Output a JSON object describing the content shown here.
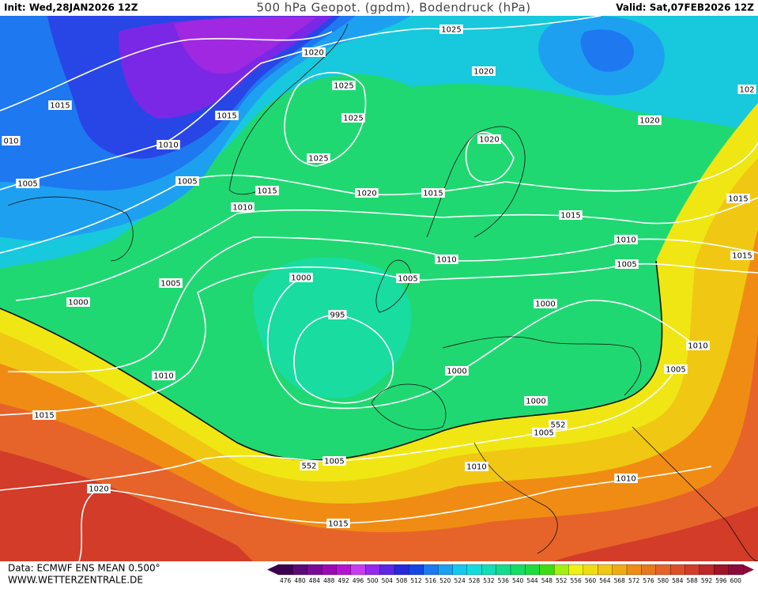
{
  "header": {
    "init": "Init: Wed,28JAN2026 12Z",
    "title": "500 hPa Geopot. (gpdm), Bodendruck (hPa)",
    "valid": "Valid: Sat,07FEB2026 12Z"
  },
  "isobar_labels": [
    "1025",
    "1020",
    "1020",
    "1015",
    "1015",
    "1025",
    "1025",
    "1020",
    "102",
    "1020",
    "1010",
    "010",
    "1025",
    "1005",
    "1005",
    "1015",
    "1020",
    "1015",
    "1010",
    "1015",
    "1015",
    "1010",
    "1010",
    "1015",
    "1005",
    "1005",
    "1000",
    "1005",
    "1000",
    "995",
    "1000",
    "1010",
    "1005",
    "1000",
    "1010",
    "1000",
    "1015",
    "552",
    "1005",
    "552",
    "1005",
    "1010",
    "1010",
    "1020",
    "1015"
  ],
  "footer": {
    "data": "Data: ECMWF ENS MEAN 0.500°",
    "site": "WWW.WETTERZENTRALE.DE"
  },
  "colorbar": {
    "levels": [
      476,
      480,
      484,
      488,
      492,
      496,
      500,
      504,
      508,
      512,
      516,
      520,
      524,
      528,
      532,
      536,
      540,
      544,
      548,
      552,
      556,
      560,
      564,
      568,
      572,
      576,
      580,
      584,
      588,
      592,
      596,
      600
    ],
    "colors": [
      "#3c0050",
      "#5a0a78",
      "#7a0a96",
      "#9a0ab4",
      "#b414d2",
      "#c83cf0",
      "#9628f0",
      "#5a28e6",
      "#2828dc",
      "#1446e6",
      "#1e78f0",
      "#1ea0f0",
      "#14c8f0",
      "#14dcdc",
      "#14dcb4",
      "#14dc8c",
      "#14dc64",
      "#1edc3c",
      "#3cdc14",
      "#a0f014",
      "#f0f014",
      "#f0dc14",
      "#f0c814",
      "#f0aa14",
      "#f08c14",
      "#e6781e",
      "#e66428",
      "#dc5028",
      "#d23c28",
      "#be2828",
      "#a01428",
      "#8c0a3c"
    ]
  }
}
